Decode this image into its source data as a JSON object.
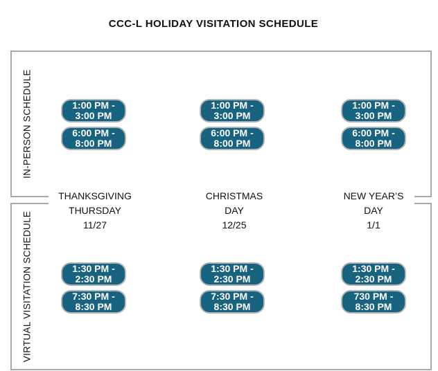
{
  "title": "CCC-L HOLIDAY VISITATION SCHEDULE",
  "colors": {
    "pill_bg": "#176380",
    "pill_border": "#b5b5b5",
    "box_border": "#a9a9a9"
  },
  "sections": [
    {
      "label": "IN-PERSON SCHEDULE"
    },
    {
      "label": "VIRTUAL VISITATION SCHEDULE"
    }
  ],
  "columns": [
    {
      "header": {
        "l1": "THANKSGIVING",
        "l2": "THURSDAY",
        "l3": "11/27"
      },
      "in_person_slots": [
        {
          "line1": "1:00 PM -",
          "line2": "3:00 PM"
        },
        {
          "line1": "6:00 PM -",
          "line2": "8:00 PM"
        }
      ],
      "virtual_slots": [
        {
          "line1": "1:30 PM -",
          "line2": "2:30 PM"
        },
        {
          "line1": "7:30 PM -",
          "line2": "8:30 PM"
        }
      ]
    },
    {
      "header": {
        "l1": "CHRISTMAS",
        "l2": "DAY",
        "l3": "12/25"
      },
      "in_person_slots": [
        {
          "line1": "1:00 PM -",
          "line2": "3:00 PM"
        },
        {
          "line1": "6:00 PM -",
          "line2": "8:00 PM"
        }
      ],
      "virtual_slots": [
        {
          "line1": "1:30 PM -",
          "line2": "2:30 PM"
        },
        {
          "line1": "7:30 PM -",
          "line2": "8:30 PM"
        }
      ]
    },
    {
      "header": {
        "l1": "NEW YEAR’S",
        "l2": "DAY",
        "l3": "1/1"
      },
      "in_person_slots": [
        {
          "line1": "1:00 PM -",
          "line2": "3:00 PM"
        },
        {
          "line1": "6:00 PM -",
          "line2": "8:00 PM"
        }
      ],
      "virtual_slots": [
        {
          "line1": "1:30 PM -",
          "line2": "2:30 PM"
        },
        {
          "line1": "730 PM -",
          "line2": "8:30 PM"
        }
      ]
    }
  ]
}
